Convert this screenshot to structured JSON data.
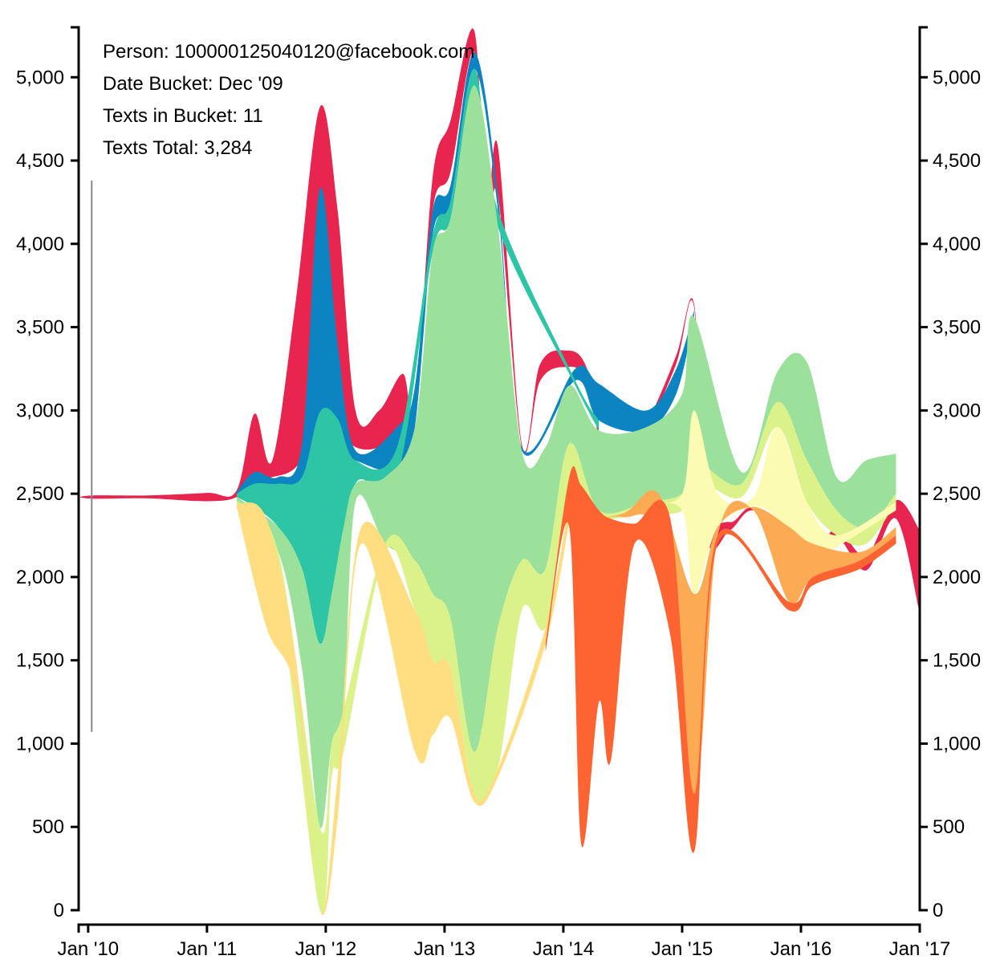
{
  "info_box": {
    "person_label": "Person:",
    "person_value": "100000125040120@facebook.com",
    "bucket_label": "Date Bucket:",
    "bucket_value": "Dec '09",
    "in_bucket_label": "Texts in Bucket:",
    "in_bucket_value": "11",
    "total_label": "Texts Total:",
    "total_value": "3,284"
  },
  "chart_data": {
    "type": "area",
    "subtype": "streamgraph",
    "xlabel": "",
    "ylabel": "",
    "x_range": [
      "Dec '09",
      "Jan '17"
    ],
    "y_range": [
      0,
      5300
    ],
    "y_ticks": [
      0,
      500,
      1000,
      1500,
      2000,
      2500,
      3000,
      3500,
      4000,
      4500,
      5000
    ],
    "y_tick_labels": [
      "0",
      "500",
      "1,000",
      "1,500",
      "2,000",
      "2,500",
      "3,000",
      "3,500",
      "4,000",
      "4,500",
      "5,000"
    ],
    "x_tick_labels": [
      "Jan '10",
      "Jan '11",
      "Jan '12",
      "Jan '13",
      "Jan '14",
      "Jan '15",
      "Jan '16",
      "Jan '17"
    ],
    "x_tick_years": [
      2010,
      2011,
      2012,
      2013,
      2014,
      2015,
      2016,
      2017
    ],
    "x_start_year": 2009.92,
    "x_end_year": 2017.0,
    "hover_year": 2010.03,
    "hover_y_range": [
      1070,
      4380
    ],
    "layer_colors": [
      "#e8254e",
      "#0c84c1",
      "#2ec4a6",
      "#9be19c",
      "#dbf18a",
      "#fbfbb3",
      "#fede80",
      "#fdaa55",
      "#fd6432"
    ],
    "layers": [
      {
        "color": "#e8254e",
        "points": [
          [
            2009.92,
            2480,
            2480
          ],
          [
            2010.05,
            2490,
            2470
          ],
          [
            2010.5,
            2490,
            2472
          ],
          [
            2011.0,
            2505,
            2455
          ],
          [
            2011.25,
            2520,
            2480
          ],
          [
            2011.4,
            2980,
            2590
          ],
          [
            2011.55,
            2700,
            2600
          ],
          [
            2011.75,
            3670,
            2660
          ],
          [
            2011.95,
            4820,
            2900
          ],
          [
            2012.1,
            4200,
            2900
          ],
          [
            2012.25,
            3000,
            2780
          ],
          [
            2012.45,
            3000,
            2780
          ],
          [
            2012.65,
            3220,
            2900
          ],
          [
            2012.75,
            2980,
            2940
          ],
          [
            2012.9,
            4400,
            4200
          ],
          [
            2013.05,
            4740,
            4430
          ],
          [
            2013.25,
            5280,
            5150
          ],
          [
            2013.35,
            4150,
            4050
          ],
          [
            2013.45,
            4580,
            4290
          ],
          [
            2013.65,
            2800,
            2780
          ],
          [
            2013.8,
            3270,
            3170
          ],
          [
            2014.0,
            3360,
            3260
          ],
          [
            2014.2,
            3250,
            3170
          ],
          [
            2014.4,
            2600,
            2560
          ],
          [
            2014.7,
            2920,
            2880
          ],
          [
            2014.95,
            3330,
            3280
          ],
          [
            2015.1,
            3640,
            3620
          ],
          [
            2015.2,
            2480,
            2260
          ],
          [
            2015.4,
            2330,
            2280
          ],
          [
            2015.6,
            2420,
            2400
          ],
          [
            2015.9,
            2240,
            2210
          ],
          [
            2016.1,
            2140,
            2080
          ],
          [
            2016.3,
            2290,
            2240
          ],
          [
            2016.55,
            2130,
            2040
          ],
          [
            2016.8,
            2460,
            2350
          ],
          [
            2017.0,
            2280,
            1780
          ]
        ]
      }
    ]
  }
}
